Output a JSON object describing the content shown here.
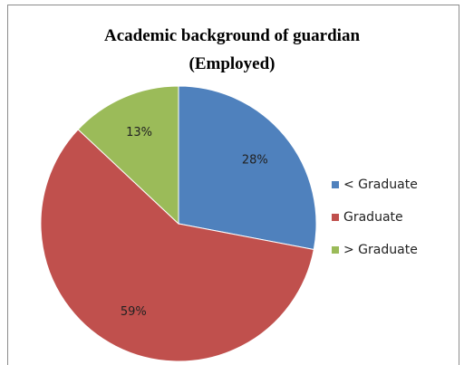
{
  "chart_data": {
    "type": "pie",
    "title": [
      "Academic background of guardian",
      "(Employed)"
    ],
    "categories": [
      "< Graduate",
      "Graduate",
      "> Graduate"
    ],
    "values": [
      28,
      59,
      13
    ],
    "value_labels": [
      "28%",
      "59%",
      "13%"
    ],
    "colors": [
      "#4f81bd",
      "#c0504d",
      "#9bbb59"
    ],
    "legend": "right"
  }
}
